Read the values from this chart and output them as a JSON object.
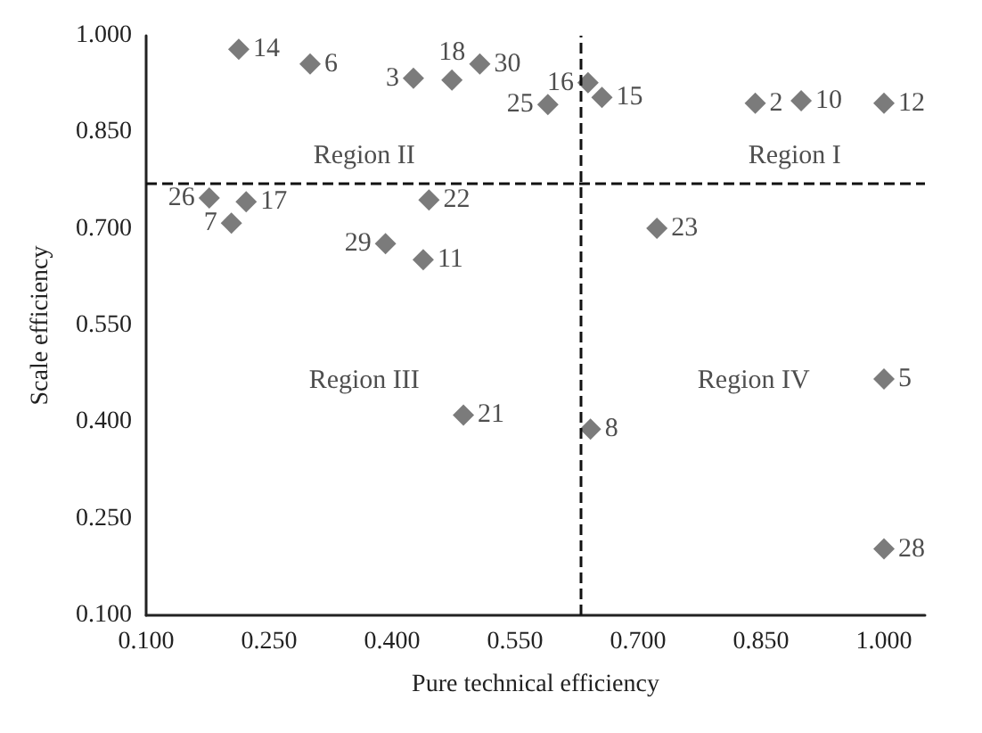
{
  "chart_data": {
    "type": "scatter",
    "xlabel": "Pure technical efficiency",
    "ylabel": "Scale efficiency",
    "marker": "diamond",
    "grid": false,
    "xlim": [
      0.1,
      1.05
    ],
    "ylim": [
      0.1,
      1.0
    ],
    "xticks": [
      {
        "value": 0.1,
        "label": "0.100"
      },
      {
        "value": 0.25,
        "label": "0.250"
      },
      {
        "value": 0.4,
        "label": "0.400"
      },
      {
        "value": 0.55,
        "label": "0.550"
      },
      {
        "value": 0.7,
        "label": "0.700"
      },
      {
        "value": 0.85,
        "label": "0.850"
      },
      {
        "value": 1.0,
        "label": "1.000"
      }
    ],
    "yticks": [
      {
        "value": 0.1,
        "label": "0.100"
      },
      {
        "value": 0.25,
        "label": "0.250"
      },
      {
        "value": 0.4,
        "label": "0.400"
      },
      {
        "value": 0.55,
        "label": "0.550"
      },
      {
        "value": 0.7,
        "label": "0.700"
      },
      {
        "value": 0.85,
        "label": "0.850"
      },
      {
        "value": 1.0,
        "label": "1.000"
      }
    ],
    "series": [
      {
        "color": "#5a5a5a",
        "x": [
          0.213,
          0.3,
          0.426,
          0.473,
          0.507,
          0.59,
          0.639,
          0.656,
          0.843,
          0.899,
          1.0,
          0.177,
          0.222,
          0.204,
          0.445,
          0.392,
          0.438,
          0.723,
          0.487,
          0.642,
          1.0,
          1.0
        ],
        "values": [
          0.979,
          0.956,
          0.934,
          0.931,
          0.956,
          0.893,
          0.927,
          0.904,
          0.895,
          0.899,
          0.895,
          0.748,
          0.742,
          0.709,
          0.745,
          0.677,
          0.652,
          0.701,
          0.411,
          0.389,
          0.467,
          0.203
        ]
      }
    ],
    "ref_lines": [
      {
        "axis": "x",
        "value": 0.632,
        "line_style": "dashed"
      },
      {
        "axis": "y",
        "value": 0.768,
        "line_style": "dashed"
      }
    ],
    "annotations": [
      "Region I",
      "Region II",
      "Region III",
      "Region IV",
      {
        "text": "14",
        "x": 0.213,
        "y": 0.979
      },
      {
        "text": "6",
        "x": 0.3,
        "y": 0.956
      },
      {
        "text": "3",
        "x": 0.426,
        "y": 0.934
      },
      {
        "text": "18",
        "x": 0.473,
        "y": 0.931
      },
      {
        "text": "30",
        "x": 0.507,
        "y": 0.956
      },
      {
        "text": "25",
        "x": 0.59,
        "y": 0.893
      },
      {
        "text": "16",
        "x": 0.639,
        "y": 0.927
      },
      {
        "text": "15",
        "x": 0.656,
        "y": 0.904
      },
      {
        "text": "2",
        "x": 0.843,
        "y": 0.895
      },
      {
        "text": "10",
        "x": 0.899,
        "y": 0.899
      },
      {
        "text": "12",
        "x": 1.0,
        "y": 0.895
      },
      {
        "text": "26",
        "x": 0.177,
        "y": 0.748
      },
      {
        "text": "17",
        "x": 0.222,
        "y": 0.742
      },
      {
        "text": "7",
        "x": 0.204,
        "y": 0.709
      },
      {
        "text": "22",
        "x": 0.445,
        "y": 0.745
      },
      {
        "text": "29",
        "x": 0.392,
        "y": 0.677
      },
      {
        "text": "11",
        "x": 0.438,
        "y": 0.652
      },
      {
        "text": "23",
        "x": 0.723,
        "y": 0.701
      },
      {
        "text": "21",
        "x": 0.487,
        "y": 0.411
      },
      {
        "text": "8",
        "x": 0.642,
        "y": 0.389
      },
      {
        "text": "5",
        "x": 1.0,
        "y": 0.467
      },
      {
        "text": "28",
        "x": 1.0,
        "y": 0.203
      }
    ]
  }
}
